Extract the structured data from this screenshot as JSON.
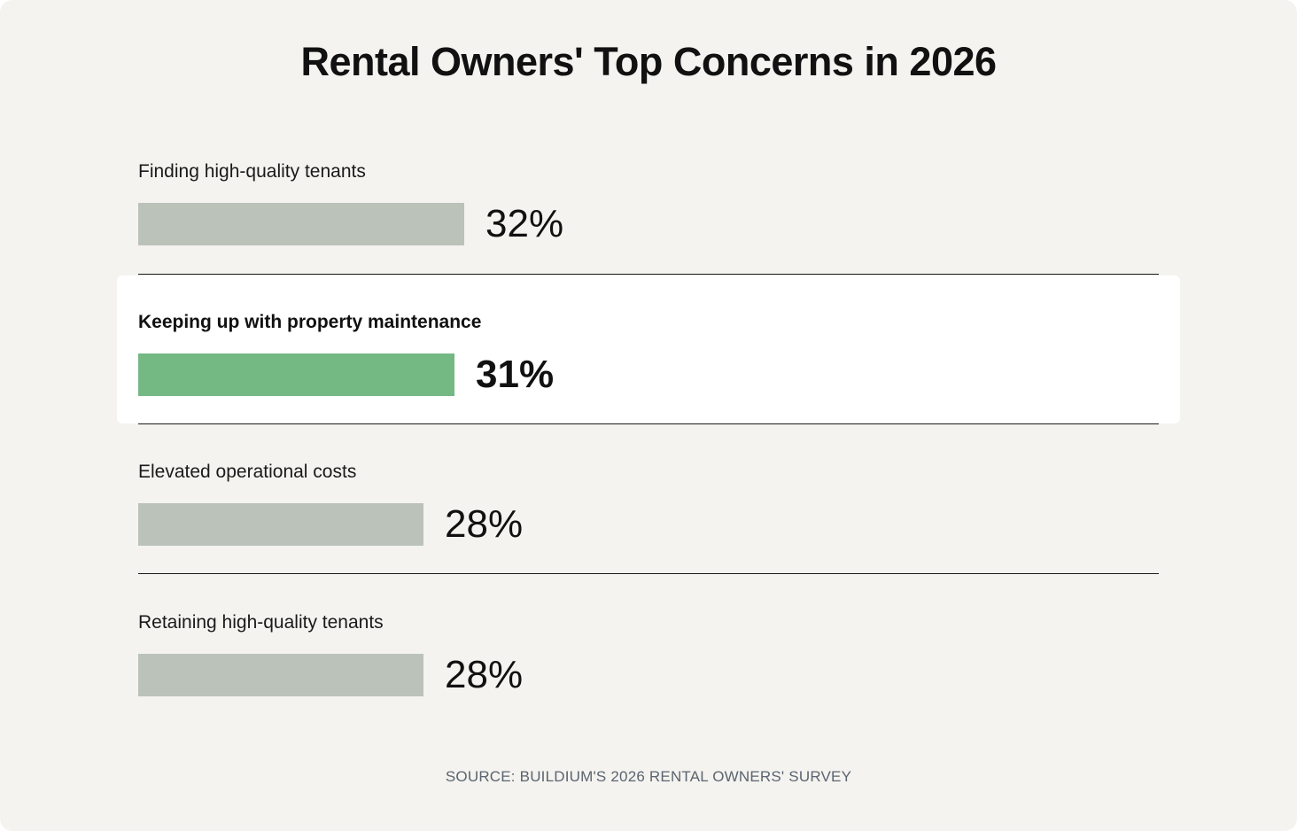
{
  "title": "Rental Owners' Top Concerns in 2026",
  "source": "SOURCE: BUILDIUM'S 2026 RENTAL OWNERS' SURVEY",
  "colors": {
    "background": "#f4f3ef",
    "bar_default": "#bbc2ba",
    "bar_highlight": "#74b883",
    "highlight_panel": "#ffffff"
  },
  "chart_data": {
    "type": "bar",
    "orientation": "horizontal",
    "categories": [
      "Finding high-quality tenants",
      "Keeping up with property maintenance",
      "Elevated operational costs",
      "Retaining high-quality tenants"
    ],
    "values": [
      32,
      31,
      28,
      28
    ],
    "value_labels": [
      "32%",
      "31%",
      "28%",
      "28%"
    ],
    "highlighted_index": 1,
    "title": "Rental Owners' Top Concerns in 2026",
    "xlabel": "",
    "ylabel": "",
    "grid": false,
    "legend": "none"
  }
}
